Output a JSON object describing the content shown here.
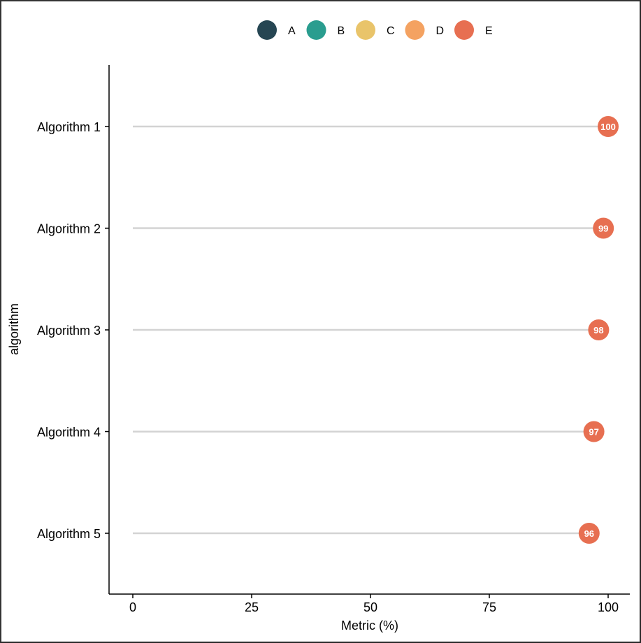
{
  "chart_data": {
    "type": "lollipop",
    "title": "",
    "xlabel": "Metric (%)",
    "ylabel": "algorithm",
    "xlim": [
      0,
      100
    ],
    "x_ticks": [
      "0",
      "25",
      "50",
      "75",
      "100"
    ],
    "x_tick_values": [
      0,
      25,
      50,
      75,
      100
    ],
    "categories": [
      "Algorithm 1",
      "Algorithm 2",
      "Algorithm 3",
      "Algorithm 4",
      "Algorithm 5"
    ],
    "values": [
      100,
      99,
      98,
      97,
      96
    ],
    "labels": [
      "100",
      "99",
      "98",
      "97",
      "96"
    ],
    "point_group": [
      "E",
      "E",
      "E",
      "E",
      "E"
    ],
    "grid": false,
    "legend_position": "top",
    "legend": [
      {
        "name": "A",
        "color": "#264653"
      },
      {
        "name": "B",
        "color": "#2a9d8f"
      },
      {
        "name": "C",
        "color": "#e9c46a"
      },
      {
        "name": "D",
        "color": "#f4a261"
      },
      {
        "name": "E",
        "color": "#e76f51"
      }
    ],
    "segment_color": "#d3d3d3",
    "point_color": "#e76f51"
  }
}
